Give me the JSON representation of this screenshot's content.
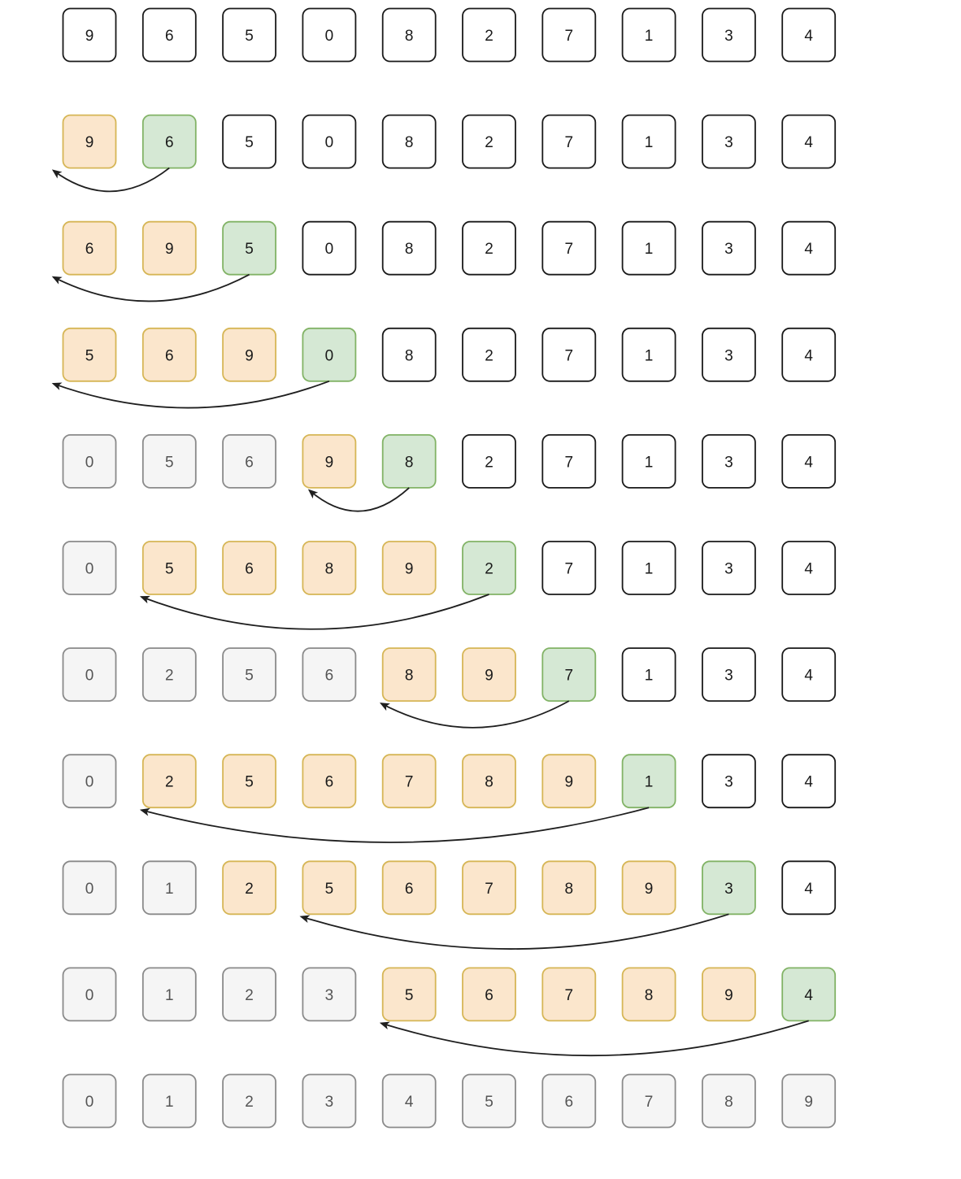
{
  "colors": {
    "default": {
      "fill": "#ffffff",
      "stroke": "#1a1a1a",
      "text": "#1a1a1a"
    },
    "sorted": {
      "fill": "#fbe6cc",
      "stroke": "#d6b656",
      "text": "#1a1a1a"
    },
    "key": {
      "fill": "#d5e8d4",
      "stroke": "#82b366",
      "text": "#1a1a1a"
    },
    "done": {
      "fill": "#f5f5f5",
      "stroke": "#8a8a8a",
      "text": "#555555"
    },
    "arrow": "#1f1f1f"
  },
  "legend": {
    "default": "",
    "sorted": "",
    "key": "",
    "done": ""
  },
  "rows": [
    {
      "values": [
        "9",
        "6",
        "5",
        "0",
        "8",
        "2",
        "7",
        "1",
        "3",
        "4"
      ],
      "states": [
        "default",
        "default",
        "default",
        "default",
        "default",
        "default",
        "default",
        "default",
        "default",
        "default"
      ],
      "arrow": null
    },
    {
      "values": [
        "9",
        "6",
        "5",
        "0",
        "8",
        "2",
        "7",
        "1",
        "3",
        "4"
      ],
      "states": [
        "sorted",
        "key",
        "default",
        "default",
        "default",
        "default",
        "default",
        "default",
        "default",
        "default"
      ],
      "arrow": {
        "from": 1,
        "to": 0
      }
    },
    {
      "values": [
        "6",
        "9",
        "5",
        "0",
        "8",
        "2",
        "7",
        "1",
        "3",
        "4"
      ],
      "states": [
        "sorted",
        "sorted",
        "key",
        "default",
        "default",
        "default",
        "default",
        "default",
        "default",
        "default"
      ],
      "arrow": {
        "from": 2,
        "to": 0
      }
    },
    {
      "values": [
        "5",
        "6",
        "9",
        "0",
        "8",
        "2",
        "7",
        "1",
        "3",
        "4"
      ],
      "states": [
        "sorted",
        "sorted",
        "sorted",
        "key",
        "default",
        "default",
        "default",
        "default",
        "default",
        "default"
      ],
      "arrow": {
        "from": 3,
        "to": 0
      }
    },
    {
      "values": [
        "0",
        "5",
        "6",
        "9",
        "8",
        "2",
        "7",
        "1",
        "3",
        "4"
      ],
      "states": [
        "done",
        "done",
        "done",
        "sorted",
        "key",
        "default",
        "default",
        "default",
        "default",
        "default"
      ],
      "arrow": {
        "from": 4,
        "to": 3
      }
    },
    {
      "values": [
        "0",
        "5",
        "6",
        "8",
        "9",
        "2",
        "7",
        "1",
        "3",
        "4"
      ],
      "states": [
        "done",
        "sorted",
        "sorted",
        "sorted",
        "sorted",
        "key",
        "default",
        "default",
        "default",
        "default"
      ],
      "arrow": {
        "from": 5,
        "to": 1
      }
    },
    {
      "values": [
        "0",
        "2",
        "5",
        "6",
        "8",
        "9",
        "7",
        "1",
        "3",
        "4"
      ],
      "states": [
        "done",
        "done",
        "done",
        "done",
        "sorted",
        "sorted",
        "key",
        "default",
        "default",
        "default"
      ],
      "arrow": {
        "from": 6,
        "to": 4
      }
    },
    {
      "values": [
        "0",
        "2",
        "5",
        "6",
        "7",
        "8",
        "9",
        "1",
        "3",
        "4"
      ],
      "states": [
        "done",
        "sorted",
        "sorted",
        "sorted",
        "sorted",
        "sorted",
        "sorted",
        "key",
        "default",
        "default"
      ],
      "arrow": {
        "from": 7,
        "to": 1
      }
    },
    {
      "values": [
        "0",
        "1",
        "2",
        "5",
        "6",
        "7",
        "8",
        "9",
        "3",
        "4"
      ],
      "states": [
        "done",
        "done",
        "sorted",
        "sorted",
        "sorted",
        "sorted",
        "sorted",
        "sorted",
        "key",
        "default"
      ],
      "arrow": {
        "from": 8,
        "to": 3
      }
    },
    {
      "values": [
        "0",
        "1",
        "2",
        "3",
        "5",
        "6",
        "7",
        "8",
        "9",
        "4"
      ],
      "states": [
        "done",
        "done",
        "done",
        "done",
        "sorted",
        "sorted",
        "sorted",
        "sorted",
        "sorted",
        "key"
      ],
      "arrow": {
        "from": 9,
        "to": 4
      }
    },
    {
      "values": [
        "0",
        "1",
        "2",
        "3",
        "4",
        "5",
        "6",
        "7",
        "8",
        "9"
      ],
      "states": [
        "done",
        "done",
        "done",
        "done",
        "done",
        "done",
        "done",
        "done",
        "done",
        "done"
      ],
      "arrow": null
    }
  ]
}
